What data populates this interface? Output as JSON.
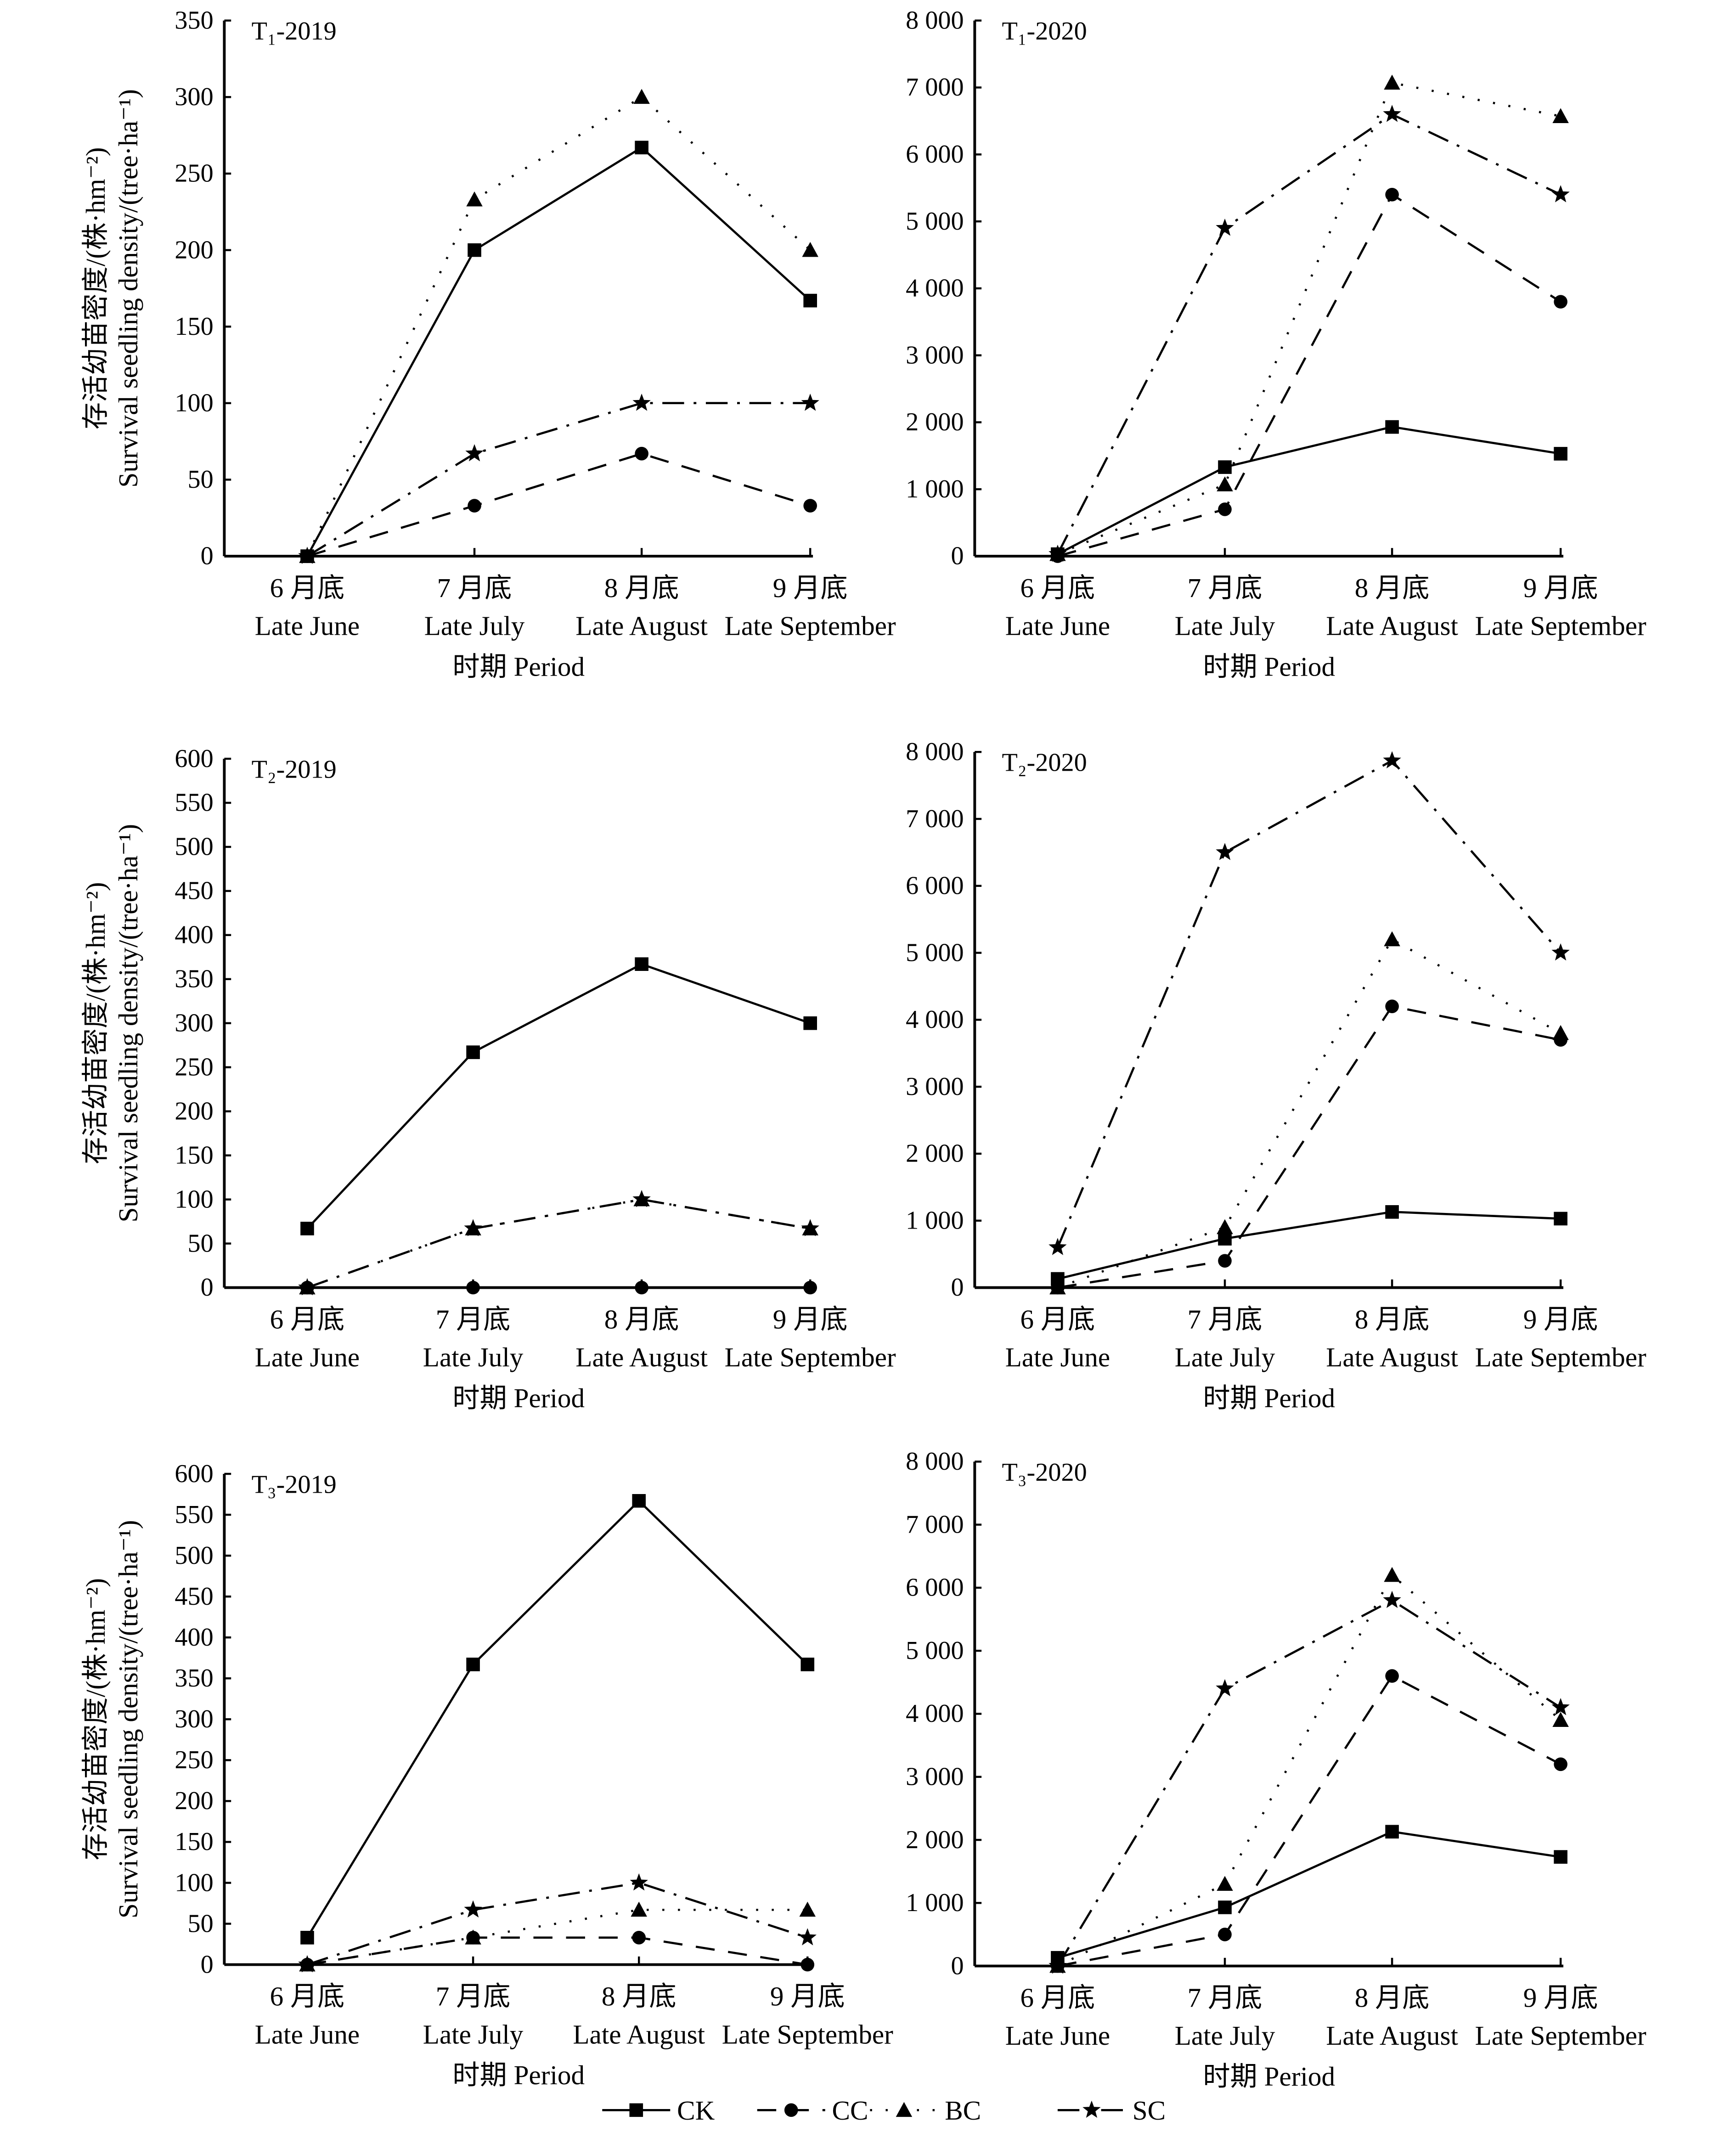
{
  "chart_data": [
    {
      "type": "line",
      "title": "T₁-2019",
      "categories_cn": [
        "6 月底",
        "7 月底",
        "8 月底",
        "9 月底"
      ],
      "categories": [
        "Late June",
        "Late July",
        "Late August",
        "Late September"
      ],
      "xlabel": "时期 Period",
      "ylabel_cn": "存活幼苗密度/(株·hm⁻²)",
      "ylabel": "Survival seedling density/(tree·ha⁻¹)",
      "ylim": [
        0,
        350
      ],
      "yticks": [
        0,
        50,
        100,
        150,
        200,
        250,
        300,
        350
      ],
      "ytick_labels": [
        "0",
        "50",
        "100",
        "150",
        "200",
        "250",
        "300",
        "350"
      ],
      "series": [
        {
          "name": "CK",
          "values": [
            0,
            200,
            267,
            167
          ]
        },
        {
          "name": "CC",
          "values": [
            0,
            33,
            67,
            33
          ]
        },
        {
          "name": "BC",
          "values": [
            0,
            233,
            300,
            200
          ]
        },
        {
          "name": "SC",
          "values": [
            0,
            67,
            100,
            100
          ]
        }
      ]
    },
    {
      "type": "line",
      "title": "T₁-2020",
      "categories_cn": [
        "6 月底",
        "7 月底",
        "8 月底",
        "9 月底"
      ],
      "categories": [
        "Late June",
        "Late July",
        "Late August",
        "Late September"
      ],
      "xlabel": "时期 Period",
      "ylim": [
        0,
        8000
      ],
      "yticks": [
        0,
        1000,
        2000,
        3000,
        4000,
        5000,
        6000,
        7000,
        8000
      ],
      "ytick_labels": [
        "0",
        "1 000",
        "2 000",
        "3 000",
        "4 000",
        "5 000",
        "6 000",
        "7 000",
        "8 000"
      ],
      "series": [
        {
          "name": "CK",
          "values": [
            30,
            1330,
            1930,
            1530
          ]
        },
        {
          "name": "CC",
          "values": [
            0,
            700,
            5400,
            3800
          ]
        },
        {
          "name": "BC",
          "values": [
            30,
            1070,
            7070,
            6570
          ]
        },
        {
          "name": "SC",
          "values": [
            30,
            4900,
            6600,
            5400
          ]
        }
      ]
    },
    {
      "type": "line",
      "title": "T₂-2019",
      "categories_cn": [
        "6 月底",
        "7 月底",
        "8 月底",
        "9 月底"
      ],
      "categories": [
        "Late June",
        "Late July",
        "Late August",
        "Late September"
      ],
      "xlabel": "时期 Period",
      "ylabel_cn": "存活幼苗密度/(株·hm⁻²)",
      "ylabel": "Survival seedling density/(tree·ha⁻¹)",
      "ylim": [
        0,
        600
      ],
      "yticks": [
        0,
        50,
        100,
        150,
        200,
        250,
        300,
        350,
        400,
        450,
        500,
        550,
        600
      ],
      "ytick_labels": [
        "0",
        "50",
        "100",
        "150",
        "200",
        "250",
        "300",
        "350",
        "400",
        "450",
        "500",
        "550",
        "600"
      ],
      "series": [
        {
          "name": "CK",
          "values": [
            67,
            267,
            367,
            300
          ]
        },
        {
          "name": "CC",
          "values": [
            0,
            0,
            0,
            0
          ]
        },
        {
          "name": "BC",
          "values": [
            0,
            67,
            100,
            67
          ]
        },
        {
          "name": "SC",
          "values": [
            0,
            67,
            100,
            67
          ]
        }
      ]
    },
    {
      "type": "line",
      "title": "T₂-2020",
      "categories_cn": [
        "6 月底",
        "7 月底",
        "8 月底",
        "9 月底"
      ],
      "categories": [
        "Late June",
        "Late July",
        "Late August",
        "Late September"
      ],
      "xlabel": "时期 Period",
      "ylim": [
        0,
        8000
      ],
      "yticks": [
        0,
        1000,
        2000,
        3000,
        4000,
        5000,
        6000,
        7000,
        8000
      ],
      "ytick_labels": [
        "0",
        "1 000",
        "2 000",
        "3 000",
        "4 000",
        "5 000",
        "6 000",
        "7 000",
        "8 000"
      ],
      "series": [
        {
          "name": "CK",
          "values": [
            130,
            730,
            1130,
            1030
          ]
        },
        {
          "name": "CC",
          "values": [
            0,
            400,
            4200,
            3700
          ]
        },
        {
          "name": "BC",
          "values": [
            0,
            900,
            5200,
            3800
          ]
        },
        {
          "name": "SC",
          "values": [
            600,
            6500,
            7870,
            5000
          ]
        }
      ]
    },
    {
      "type": "line",
      "title": "T₃-2019",
      "categories_cn": [
        "6 月底",
        "7 月底",
        "8 月底",
        "9 月底"
      ],
      "categories": [
        "Late June",
        "Late July",
        "Late August",
        "Late September"
      ],
      "xlabel": "时期 Period",
      "ylabel_cn": "存活幼苗密度/(株·hm⁻²)",
      "ylabel": "Survival seedling density/(tree·ha⁻¹)",
      "ylim": [
        0,
        600
      ],
      "yticks": [
        0,
        50,
        100,
        150,
        200,
        250,
        300,
        350,
        400,
        450,
        500,
        550,
        600
      ],
      "ytick_labels": [
        "0",
        "50",
        "100",
        "150",
        "200",
        "250",
        "300",
        "350",
        "400",
        "450",
        "500",
        "550",
        "600"
      ],
      "series": [
        {
          "name": "CK",
          "values": [
            33,
            367,
            567,
            367
          ]
        },
        {
          "name": "CC",
          "values": [
            0,
            33,
            33,
            0
          ]
        },
        {
          "name": "BC",
          "values": [
            0,
            33,
            67,
            67
          ]
        },
        {
          "name": "SC",
          "values": [
            0,
            67,
            100,
            33
          ]
        }
      ]
    },
    {
      "type": "line",
      "title": "T₃-2020",
      "categories_cn": [
        "6 月底",
        "7 月底",
        "8 月底",
        "9 月底"
      ],
      "categories": [
        "Late June",
        "Late July",
        "Late August",
        "Late September"
      ],
      "xlabel": "时期 Period",
      "ylim": [
        0,
        8000
      ],
      "yticks": [
        0,
        1000,
        2000,
        3000,
        4000,
        5000,
        6000,
        7000,
        8000
      ],
      "ytick_labels": [
        "0",
        "1 000",
        "2 000",
        "3 000",
        "4 000",
        "5 000",
        "6 000",
        "7 000",
        "8 000"
      ],
      "series": [
        {
          "name": "CK",
          "values": [
            130,
            930,
            2130,
            1730
          ]
        },
        {
          "name": "CC",
          "values": [
            0,
            500,
            4600,
            3200
          ]
        },
        {
          "name": "BC",
          "values": [
            0,
            1300,
            6200,
            3900
          ]
        },
        {
          "name": "SC",
          "values": [
            0,
            4400,
            5800,
            4100
          ]
        }
      ]
    }
  ],
  "legend": [
    {
      "label": "CK",
      "marker": "square",
      "dash": "solid"
    },
    {
      "label": "CC",
      "marker": "circle",
      "dash": "dashed"
    },
    {
      "label": "BC",
      "marker": "triangle",
      "dash": "dotted"
    },
    {
      "label": "SC",
      "marker": "star",
      "dash": "dash-dot"
    }
  ]
}
